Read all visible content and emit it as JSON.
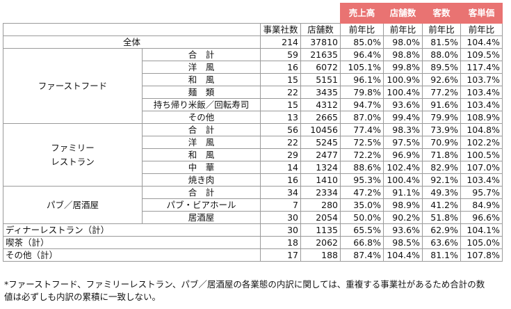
{
  "chart_data": {
    "type": "table",
    "columns": {
      "group_headers": [
        "売上高",
        "店舗数",
        "客数",
        "客単価"
      ],
      "sub_headers": [
        "事業社数",
        "店舗数",
        "前年比",
        "前年比",
        "前年比",
        "前年比"
      ]
    },
    "rows": {
      "total": {
        "label": "全体",
        "v": [
          "214",
          "37810",
          "85.0%",
          "98.0%",
          "81.5%",
          "104.4%"
        ]
      },
      "ff_label": "ファーストフード",
      "ff": [
        {
          "label": "合　計",
          "v": [
            "59",
            "21635",
            "96.4%",
            "98.8%",
            "88.0%",
            "109.5%"
          ]
        },
        {
          "label": "洋　風",
          "v": [
            "16",
            "6072",
            "105.1%",
            "99.8%",
            "89.5%",
            "117.4%"
          ]
        },
        {
          "label": "和　風",
          "v": [
            "15",
            "5151",
            "96.1%",
            "100.9%",
            "92.6%",
            "103.7%"
          ]
        },
        {
          "label": "麺　類",
          "v": [
            "22",
            "3435",
            "79.8%",
            "100.4%",
            "77.2%",
            "103.4%"
          ]
        },
        {
          "label": "持ち帰り米飯／回転寿司",
          "v": [
            "15",
            "4312",
            "94.7%",
            "93.6%",
            "91.6%",
            "103.4%"
          ]
        },
        {
          "label": "その他",
          "v": [
            "13",
            "2665",
            "87.0%",
            "99.4%",
            "79.9%",
            "108.9%"
          ]
        }
      ],
      "fr_label_1": "ファミリー",
      "fr_label_2": "レストラン",
      "fr": [
        {
          "label": "合　計",
          "v": [
            "56",
            "10456",
            "77.4%",
            "98.3%",
            "73.9%",
            "104.8%"
          ]
        },
        {
          "label": "洋　風",
          "v": [
            "22",
            "5245",
            "72.5%",
            "97.5%",
            "70.9%",
            "102.2%"
          ]
        },
        {
          "label": "和　風",
          "v": [
            "29",
            "2477",
            "72.2%",
            "96.9%",
            "71.8%",
            "100.5%"
          ]
        },
        {
          "label": "中　華",
          "v": [
            "14",
            "1324",
            "88.6%",
            "102.4%",
            "82.9%",
            "107.0%"
          ]
        },
        {
          "label": "焼き肉",
          "v": [
            "16",
            "1410",
            "95.3%",
            "100.4%",
            "92.1%",
            "103.4%"
          ]
        }
      ],
      "pub_label": "パブ／居酒屋",
      "pub": [
        {
          "label": "合　計",
          "v": [
            "34",
            "2334",
            "47.2%",
            "91.1%",
            "49.3%",
            "95.7%"
          ]
        },
        {
          "label": "パブ・ビアホール",
          "v": [
            "7",
            "280",
            "35.0%",
            "98.9%",
            "41.2%",
            "84.9%"
          ]
        },
        {
          "label": "居酒屋",
          "v": [
            "30",
            "2054",
            "50.0%",
            "90.2%",
            "51.8%",
            "96.6%"
          ]
        }
      ],
      "others": [
        {
          "label": "ディナーレストラン（計）",
          "v": [
            "30",
            "1135",
            "65.5%",
            "93.6%",
            "62.9%",
            "104.1%"
          ]
        },
        {
          "label": "喫茶（計）",
          "v": [
            "18",
            "2062",
            "66.8%",
            "98.5%",
            "63.6%",
            "105.0%"
          ]
        },
        {
          "label": "その他（計）",
          "v": [
            "17",
            "188",
            "87.4%",
            "104.4%",
            "81.1%",
            "107.8%"
          ]
        }
      ]
    }
  },
  "footnote_line1": "*ファーストフード、ファミリーレストラン、パブ／居酒屋の各業態の内訳に関しては、重複する事業社があるため合計の数",
  "footnote_line2": "値は必ずしも内訳の累積に一致しない。",
  "colors": {
    "header_bg": "#e97372",
    "header_text": "#ffffff",
    "border": "#9a9a9a"
  }
}
